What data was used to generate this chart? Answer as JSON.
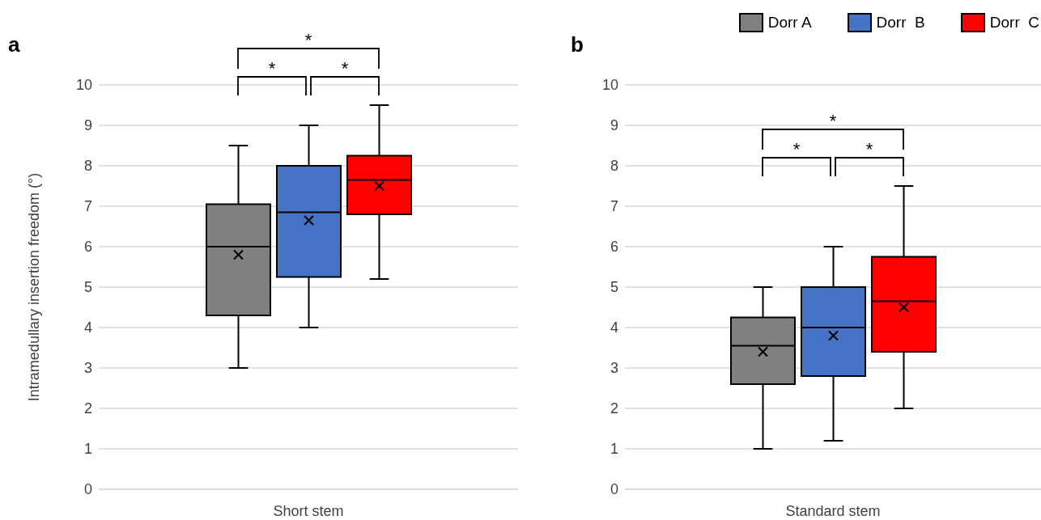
{
  "chart_data": [
    {
      "type": "box",
      "title": "a",
      "ylabel": "Intramedullary insertion freedom (°)",
      "categories": [
        "Short stem"
      ],
      "ylim": [
        0,
        10
      ],
      "yticks": [
        0,
        1,
        2,
        3,
        4,
        5,
        6,
        7,
        8,
        9,
        10
      ],
      "grid": "y",
      "legend": false,
      "series": [
        {
          "color": "#808080",
          "boxes": [
            {
              "low": 3.0,
              "q1": 4.3,
              "median": 6.0,
              "q3": 7.05,
              "high": 8.5,
              "mean": 5.8
            }
          ]
        },
        {
          "color": "#4472c4",
          "boxes": [
            {
              "low": 4.0,
              "q1": 5.25,
              "median": 6.85,
              "q3": 8.0,
              "high": 9.0,
              "mean": 6.65
            }
          ]
        },
        {
          "color": "#ff0000",
          "boxes": [
            {
              "low": 5.2,
              "q1": 6.8,
              "median": 7.65,
              "q3": 8.25,
              "high": 9.5,
              "mean": 7.5
            }
          ]
        }
      ],
      "annotations": [
        "*",
        "*",
        "*"
      ]
    },
    {
      "type": "box",
      "title": "b",
      "categories": [
        "Standard stem"
      ],
      "ylim": [
        0,
        10
      ],
      "yticks": [
        0,
        1,
        2,
        3,
        4,
        5,
        6,
        7,
        8,
        9,
        10
      ],
      "grid": "y",
      "legend": "top",
      "series": [
        {
          "name": "Dorr A",
          "color": "#808080",
          "boxes": [
            {
              "low": 1.0,
              "q1": 2.6,
              "median": 3.55,
              "q3": 4.25,
              "high": 5.0,
              "mean": 3.4
            }
          ]
        },
        {
          "name": "Dorr  B",
          "color": "#4472c4",
          "boxes": [
            {
              "low": 1.2,
              "q1": 2.8,
              "median": 4.0,
              "q3": 5.0,
              "high": 6.0,
              "mean": 3.8
            }
          ]
        },
        {
          "name": "Dorr  C",
          "color": "#ff0000",
          "boxes": [
            {
              "low": 2.0,
              "q1": 3.4,
              "median": 4.65,
              "q3": 5.75,
              "high": 7.5,
              "mean": 4.5
            }
          ]
        }
      ],
      "annotations": [
        "*",
        "*",
        "*"
      ]
    }
  ]
}
